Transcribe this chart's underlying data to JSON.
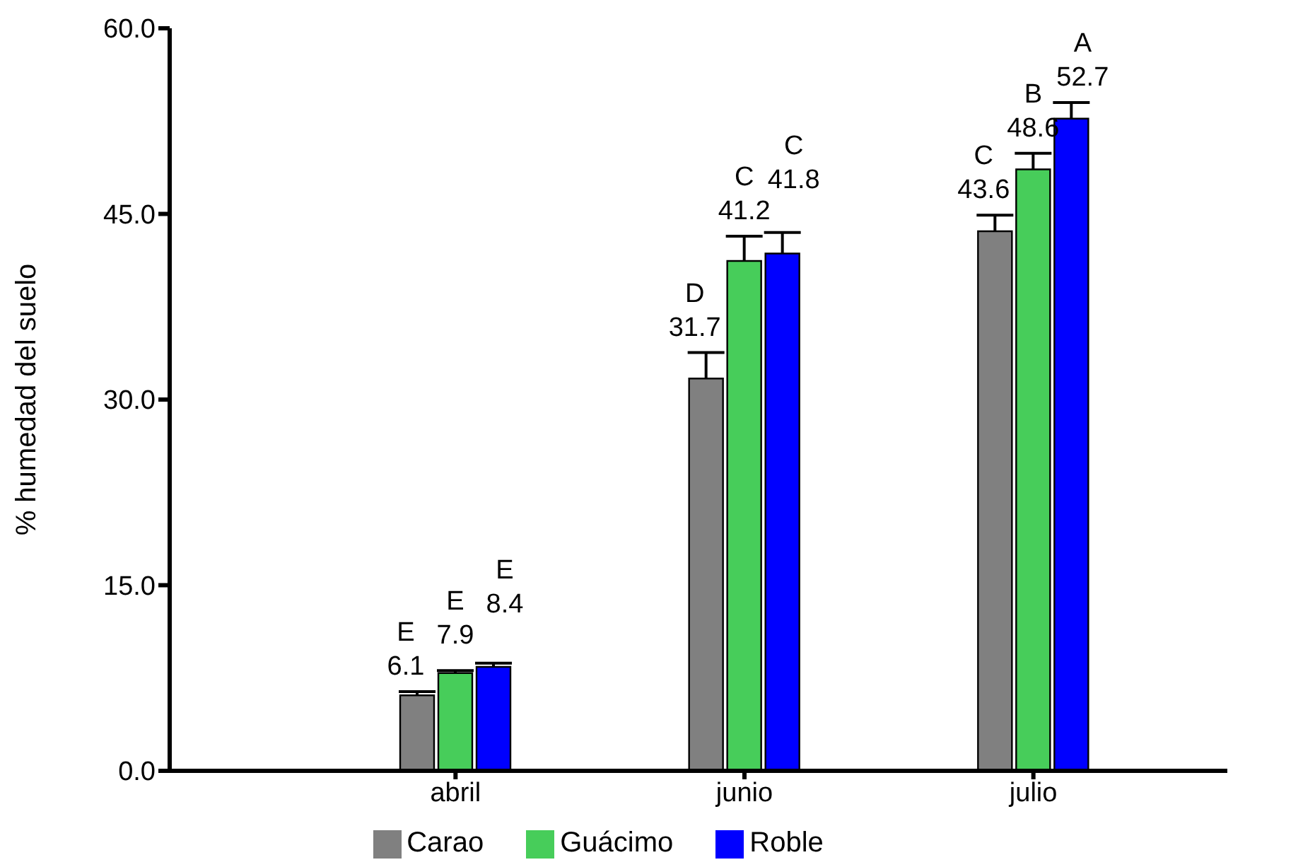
{
  "chart_data": {
    "type": "bar",
    "ylabel": "% humedad del suelo",
    "categories": [
      "abril",
      "junio",
      "julio"
    ],
    "ylim": [
      0,
      60
    ],
    "yticks": [
      {
        "value": 0,
        "label": "0.0"
      },
      {
        "value": 15,
        "label": "15.0"
      },
      {
        "value": 30,
        "label": "30.0"
      },
      {
        "value": 45,
        "label": "45.0"
      },
      {
        "value": 60,
        "label": "60.0"
      }
    ],
    "grid": false,
    "legend": "bottom",
    "series": [
      {
        "name": "Carao",
        "color": "#808080",
        "values": [
          6.1,
          31.7,
          43.6
        ],
        "errors": [
          [
            6.1,
            6.4
          ],
          [
            31.7,
            33.8
          ],
          [
            43.6,
            44.9
          ]
        ],
        "value_labels": [
          "E\n6.1",
          "D\n31.7",
          "C\n43.6"
        ]
      },
      {
        "name": "Guácimo",
        "color": "#47cd5a",
        "values": [
          7.9,
          41.2,
          48.6
        ],
        "errors": [
          [
            7.9,
            8.1
          ],
          [
            41.2,
            43.2
          ],
          [
            48.6,
            49.9
          ]
        ],
        "value_labels": [
          "E\n7.9",
          "C\n41.2",
          "B\n48.6"
        ]
      },
      {
        "name": "Roble",
        "color": "#0000ff",
        "values": [
          8.4,
          41.8,
          52.7
        ],
        "errors": [
          [
            8.4,
            8.7
          ],
          [
            41.8,
            43.5
          ],
          [
            52.7,
            54.0
          ]
        ],
        "value_labels": [
          "E\n8.4",
          "C\n41.8",
          "A\n52.7"
        ]
      }
    ]
  }
}
